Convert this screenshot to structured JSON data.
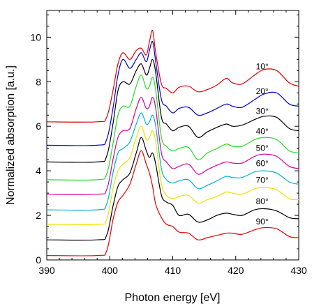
{
  "chart_data": {
    "type": "line",
    "title": "",
    "xlabel": "Photon energy [eV]",
    "ylabel": "Normalized absorption [a.u.]",
    "xlim": [
      390,
      430
    ],
    "ylim": [
      0,
      11.2
    ],
    "x_ticks": [
      "390",
      "400",
      "410",
      "420",
      "430"
    ],
    "y_ticks": [
      "0",
      "2",
      "4",
      "6",
      "8",
      "10"
    ],
    "grid": false,
    "legend": "none",
    "energies": [
      390,
      398,
      399.5,
      400.5,
      401.3,
      402.1,
      403.2,
      404.2,
      405.0,
      405.8,
      406.3,
      406.8,
      407.3,
      408.2,
      409.0,
      410.0,
      411.0,
      412.5,
      414.0,
      415.5,
      417.0,
      418.5,
      419.5,
      421.0,
      423.0,
      424.5,
      426.5,
      428.5,
      430
    ],
    "series": [
      {
        "name": "10°",
        "label": "10°",
        "color": "#e00000",
        "values": [
          6.2,
          6.2,
          6.4,
          7.6,
          8.8,
          9.3,
          9.0,
          9.4,
          9.5,
          9.2,
          9.8,
          10.3,
          9.3,
          7.9,
          7.7,
          7.5,
          7.75,
          7.8,
          7.55,
          7.65,
          7.85,
          8.15,
          7.95,
          7.9,
          8.3,
          8.55,
          8.5,
          7.95,
          7.8
        ]
      },
      {
        "name": "20°",
        "label": "20°",
        "color": "#0000d0",
        "values": [
          5.15,
          5.15,
          5.4,
          6.8,
          8.3,
          9.0,
          8.6,
          9.0,
          9.3,
          8.9,
          9.4,
          9.8,
          8.9,
          7.2,
          6.9,
          6.6,
          6.8,
          6.85,
          6.5,
          6.6,
          6.8,
          7.0,
          6.9,
          6.85,
          7.2,
          7.45,
          7.5,
          7.0,
          6.9
        ]
      },
      {
        "name": "30°",
        "label": "30°",
        "color": "#000000",
        "values": [
          4.4,
          4.4,
          4.65,
          6.1,
          7.6,
          8.0,
          7.9,
          8.5,
          8.8,
          8.3,
          8.6,
          9.0,
          8.4,
          6.4,
          6.1,
          5.8,
          5.95,
          6.0,
          5.5,
          5.75,
          5.95,
          6.1,
          6.0,
          6.05,
          6.3,
          6.45,
          6.4,
          5.9,
          5.8
        ]
      },
      {
        "name": "40°",
        "label": "40°",
        "color": "#22dd22",
        "values": [
          3.6,
          3.6,
          3.85,
          5.2,
          6.5,
          6.9,
          6.9,
          7.8,
          8.3,
          7.7,
          7.8,
          8.2,
          7.6,
          5.5,
          5.1,
          4.9,
          5.0,
          5.05,
          4.5,
          4.8,
          5.0,
          5.2,
          5.1,
          5.1,
          5.4,
          5.5,
          5.4,
          4.9,
          4.8
        ]
      },
      {
        "name": "50°",
        "label": "50°",
        "color": "#d000a0",
        "values": [
          2.95,
          2.95,
          3.15,
          4.5,
          5.5,
          5.8,
          5.9,
          6.8,
          7.3,
          6.8,
          6.9,
          7.3,
          6.8,
          4.8,
          4.4,
          4.1,
          4.2,
          4.3,
          3.85,
          4.05,
          4.25,
          4.4,
          4.35,
          4.35,
          4.65,
          4.75,
          4.65,
          4.2,
          4.1
        ]
      },
      {
        "name": "60°",
        "label": "60°",
        "color": "#00b0d0",
        "values": [
          2.25,
          2.25,
          2.5,
          3.9,
          4.8,
          5.0,
          5.3,
          6.1,
          6.6,
          6.1,
          6.2,
          6.5,
          6.0,
          4.1,
          3.6,
          3.45,
          3.55,
          3.6,
          3.2,
          3.35,
          3.55,
          3.75,
          3.7,
          3.7,
          3.95,
          4.0,
          3.9,
          3.5,
          3.4
        ]
      },
      {
        "name": "70°",
        "label": "70°",
        "color": "#f0e000",
        "values": [
          1.6,
          1.6,
          1.8,
          3.2,
          4.0,
          4.3,
          4.6,
          5.5,
          6.0,
          5.4,
          5.5,
          5.8,
          5.3,
          3.4,
          2.9,
          2.75,
          2.85,
          2.9,
          2.55,
          2.7,
          2.85,
          3.05,
          3.0,
          2.95,
          3.2,
          3.25,
          3.15,
          2.75,
          2.7
        ]
      },
      {
        "name": "80°",
        "label": "80°",
        "color": "#000000",
        "values": [
          0.9,
          0.9,
          1.1,
          2.4,
          3.3,
          3.6,
          3.9,
          4.8,
          5.5,
          4.9,
          4.6,
          4.8,
          4.3,
          2.9,
          2.6,
          2.45,
          2.0,
          2.05,
          1.7,
          1.8,
          2.0,
          2.1,
          2.05,
          2.0,
          2.25,
          2.3,
          2.2,
          1.9,
          1.85
        ]
      },
      {
        "name": "90°",
        "label": "90°",
        "color": "#e00000",
        "values": [
          0.2,
          0.2,
          0.4,
          1.8,
          2.6,
          2.9,
          3.4,
          4.3,
          4.9,
          4.3,
          3.9,
          3.3,
          2.5,
          1.9,
          1.6,
          1.5,
          1.25,
          1.2,
          0.9,
          1.0,
          1.1,
          1.2,
          1.2,
          1.15,
          1.35,
          1.45,
          1.4,
          1.05,
          1.0
        ]
      }
    ]
  }
}
